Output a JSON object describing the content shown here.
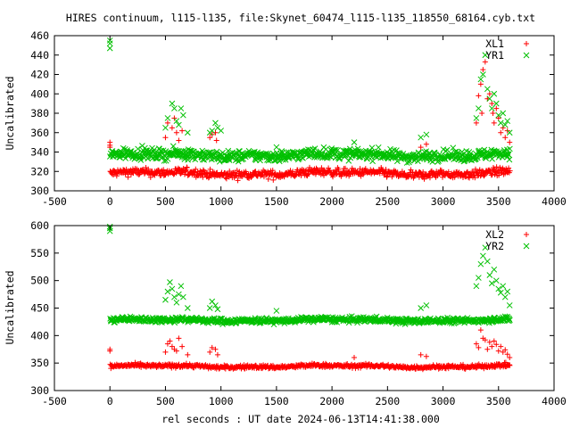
{
  "title": "HIRES continuum, l115-l135, file:Skynet_60474_l115-l135_118550_68164.cyb.txt",
  "xlabel": "rel seconds : UT date 2024-06-13T14:41:38.000",
  "colors": {
    "red": "#ff0000",
    "green": "#00c000",
    "axis": "#000000"
  },
  "chart_data": [
    {
      "type": "scatter",
      "ylabel": "Uncalibrated",
      "xlim": [
        -500,
        4000
      ],
      "ylim": [
        300,
        460
      ],
      "xticks": [
        -500,
        0,
        500,
        1000,
        1500,
        2000,
        2500,
        3000,
        3500,
        4000
      ],
      "yticks": [
        300,
        320,
        340,
        360,
        380,
        400,
        420,
        440,
        460
      ],
      "legend_position": "top-right",
      "series": [
        {
          "name": "XL1",
          "marker": "+",
          "color": "#ff0000",
          "base": 318,
          "noise": 6,
          "x_range": [
            0,
            3600
          ],
          "points": [
            [
              0,
              350
            ],
            [
              0,
              345
            ],
            [
              0,
              347
            ],
            [
              500,
              355
            ],
            [
              520,
              370
            ],
            [
              560,
              365
            ],
            [
              580,
              375
            ],
            [
              600,
              360
            ],
            [
              620,
              352
            ],
            [
              650,
              362
            ],
            [
              900,
              355
            ],
            [
              920,
              358
            ],
            [
              950,
              360
            ],
            [
              960,
              352
            ],
            [
              2800,
              345
            ],
            [
              2850,
              348
            ],
            [
              3300,
              370
            ],
            [
              3320,
              398
            ],
            [
              3340,
              410
            ],
            [
              3350,
              380
            ],
            [
              3360,
              425
            ],
            [
              3380,
              433
            ],
            [
              3400,
              395
            ],
            [
              3420,
              400
            ],
            [
              3440,
              390
            ],
            [
              3450,
              380
            ],
            [
              3460,
              370
            ],
            [
              3480,
              385
            ],
            [
              3500,
              375
            ],
            [
              3520,
              360
            ],
            [
              3540,
              365
            ],
            [
              3560,
              355
            ],
            [
              3580,
              362
            ],
            [
              3600,
              350
            ]
          ]
        },
        {
          "name": "YR1",
          "marker": "x",
          "color": "#00c000",
          "base": 337,
          "noise": 8,
          "x_range": [
            0,
            3600
          ],
          "points": [
            [
              0,
              455
            ],
            [
              0,
              452
            ],
            [
              0,
              447
            ],
            [
              500,
              365
            ],
            [
              520,
              375
            ],
            [
              560,
              390
            ],
            [
              580,
              385
            ],
            [
              600,
              372
            ],
            [
              620,
              368
            ],
            [
              640,
              385
            ],
            [
              660,
              378
            ],
            [
              700,
              360
            ],
            [
              900,
              360
            ],
            [
              920,
              362
            ],
            [
              950,
              370
            ],
            [
              970,
              365
            ],
            [
              1000,
              362
            ],
            [
              1500,
              345
            ],
            [
              2200,
              350
            ],
            [
              2800,
              355
            ],
            [
              2850,
              358
            ],
            [
              3300,
              375
            ],
            [
              3320,
              385
            ],
            [
              3340,
              415
            ],
            [
              3360,
              420
            ],
            [
              3380,
              440
            ],
            [
              3400,
              405
            ],
            [
              3420,
              395
            ],
            [
              3440,
              385
            ],
            [
              3460,
              400
            ],
            [
              3480,
              390
            ],
            [
              3500,
              378
            ],
            [
              3520,
              370
            ],
            [
              3540,
              380
            ],
            [
              3560,
              368
            ],
            [
              3580,
              372
            ],
            [
              3600,
              360
            ]
          ]
        }
      ]
    },
    {
      "type": "scatter",
      "ylabel": "Uncalibrated",
      "xlim": [
        -500,
        4000
      ],
      "ylim": [
        300,
        600
      ],
      "xticks": [
        -500,
        0,
        500,
        1000,
        1500,
        2000,
        2500,
        3000,
        3500,
        4000
      ],
      "yticks": [
        300,
        350,
        400,
        450,
        500,
        550,
        600
      ],
      "legend_position": "top-right",
      "series": [
        {
          "name": "XL2",
          "marker": "+",
          "color": "#ff0000",
          "base": 344,
          "noise": 5,
          "x_range": [
            0,
            3600
          ],
          "points": [
            [
              0,
              372
            ],
            [
              0,
              375
            ],
            [
              500,
              370
            ],
            [
              520,
              385
            ],
            [
              540,
              390
            ],
            [
              560,
              380
            ],
            [
              580,
              375
            ],
            [
              600,
              372
            ],
            [
              620,
              395
            ],
            [
              650,
              380
            ],
            [
              700,
              365
            ],
            [
              900,
              370
            ],
            [
              920,
              378
            ],
            [
              950,
              375
            ],
            [
              970,
              365
            ],
            [
              2200,
              360
            ],
            [
              2800,
              365
            ],
            [
              2850,
              362
            ],
            [
              3300,
              385
            ],
            [
              3320,
              378
            ],
            [
              3340,
              410
            ],
            [
              3360,
              395
            ],
            [
              3380,
              392
            ],
            [
              3400,
              375
            ],
            [
              3420,
              388
            ],
            [
              3440,
              380
            ],
            [
              3460,
              390
            ],
            [
              3480,
              384
            ],
            [
              3500,
              372
            ],
            [
              3520,
              380
            ],
            [
              3540,
              370
            ],
            [
              3560,
              374
            ],
            [
              3580,
              366
            ],
            [
              3600,
              360
            ]
          ]
        },
        {
          "name": "YR2",
          "marker": "x",
          "color": "#00c000",
          "base": 428,
          "noise": 7,
          "x_range": [
            0,
            3600
          ],
          "points": [
            [
              0,
              598
            ],
            [
              0,
              595
            ],
            [
              0,
              590
            ],
            [
              500,
              465
            ],
            [
              520,
              480
            ],
            [
              540,
              497
            ],
            [
              560,
              485
            ],
            [
              580,
              470
            ],
            [
              600,
              460
            ],
            [
              620,
              475
            ],
            [
              640,
              490
            ],
            [
              660,
              470
            ],
            [
              700,
              450
            ],
            [
              900,
              450
            ],
            [
              920,
              462
            ],
            [
              950,
              455
            ],
            [
              970,
              448
            ],
            [
              1500,
              445
            ],
            [
              2800,
              450
            ],
            [
              2850,
              455
            ],
            [
              3300,
              490
            ],
            [
              3320,
              505
            ],
            [
              3340,
              530
            ],
            [
              3360,
              545
            ],
            [
              3380,
              560
            ],
            [
              3400,
              535
            ],
            [
              3420,
              510
            ],
            [
              3440,
              495
            ],
            [
              3460,
              520
            ],
            [
              3480,
              500
            ],
            [
              3500,
              485
            ],
            [
              3520,
              478
            ],
            [
              3540,
              490
            ],
            [
              3560,
              470
            ],
            [
              3580,
              480
            ],
            [
              3600,
              455
            ]
          ]
        }
      ]
    }
  ]
}
